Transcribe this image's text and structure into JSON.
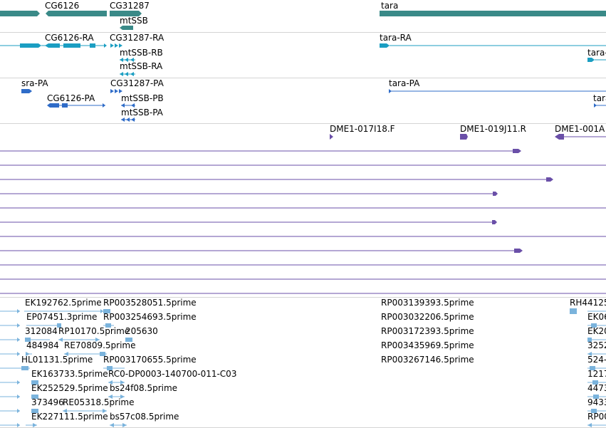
{
  "colors": {
    "gene": "#3a8a88",
    "transcript": "#1b9ec2",
    "protein": "#2f6cc8",
    "clone": "#6a4fa8",
    "est": "#7ab3dc",
    "separator": "#d4d4d4"
  },
  "genes": {
    "labels": [
      "CG6126",
      "CG31287",
      "mtSSB",
      "tara"
    ]
  },
  "transcripts": {
    "labels": [
      "CG6126-RA",
      "CG31287-RA",
      "mtSSB-RB",
      "mtSSB-RA",
      "tara-RA",
      "tara-"
    ]
  },
  "proteins": {
    "labels": [
      "sra-PA",
      "CG6126-PA",
      "CG31287-PA",
      "mtSSB-PB",
      "mtSSB-PA",
      "tara-PA",
      "tara"
    ]
  },
  "clones": {
    "labels": [
      "DME1-017I18.F",
      "DME1-019J11.R",
      "DME1-001A"
    ]
  },
  "ests": {
    "labels": [
      "EK192762.5prime",
      "RP003528051.5prime",
      "EP07451.3prime",
      "RP003254693.5prime",
      "312084",
      "RP10170.5prime",
      "205630",
      "484984",
      "RE70809.5prime",
      "HL01131.5prime",
      "RP003170655.5prime",
      "EK163733.5prime",
      "RC0-DP0003-140700-011-C03",
      "EK252529.5prime",
      "bs24f08.5prime",
      "373496",
      "RE05318.5prime",
      "EK227111.5prime",
      "bs57c08.5prime",
      "RP003139393.5prime",
      "RP003032206.5prime",
      "RP003172393.5prime",
      "RP003435969.5prime",
      "RP003267146.5prime",
      "RH44125",
      "EK06",
      "EK20",
      "3252",
      "524-",
      "1217",
      "4473",
      "9433",
      "RP00"
    ]
  }
}
